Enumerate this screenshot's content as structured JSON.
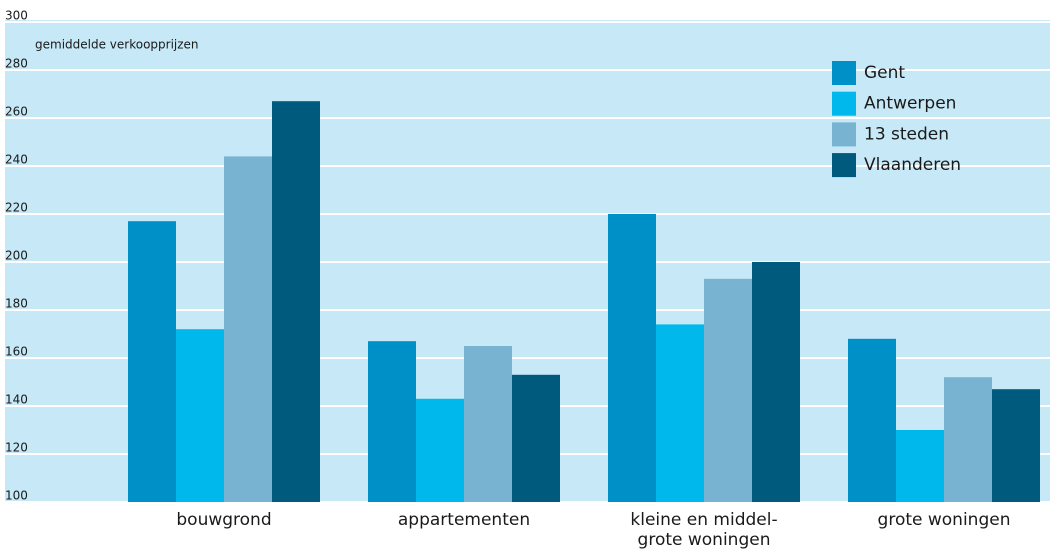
{
  "chart_data": {
    "type": "bar",
    "ylabel": "gemiddelde verkoopprijzen",
    "categories": [
      "bouwgrond",
      "appartementen",
      "kleine en middel-\ngrote woningen",
      "grote woningen"
    ],
    "series": [
      {
        "name": "Gent",
        "color": "#0090c8",
        "values": [
          217,
          167,
          220,
          168
        ]
      },
      {
        "name": "Antwerpen",
        "color": "#00b8ec",
        "values": [
          172,
          143,
          174,
          130
        ]
      },
      {
        "name": "13 steden",
        "color": "#78b4d2",
        "values": [
          244,
          165,
          193,
          152
        ]
      },
      {
        "name": "Vlaanderen",
        "color": "#005a7e",
        "values": [
          267,
          153,
          200,
          147
        ]
      }
    ],
    "ylim": [
      100,
      300
    ],
    "yticks": [
      100,
      120,
      140,
      160,
      180,
      200,
      220,
      240,
      260,
      280,
      300
    ],
    "grid": true,
    "legend": "top-right"
  }
}
